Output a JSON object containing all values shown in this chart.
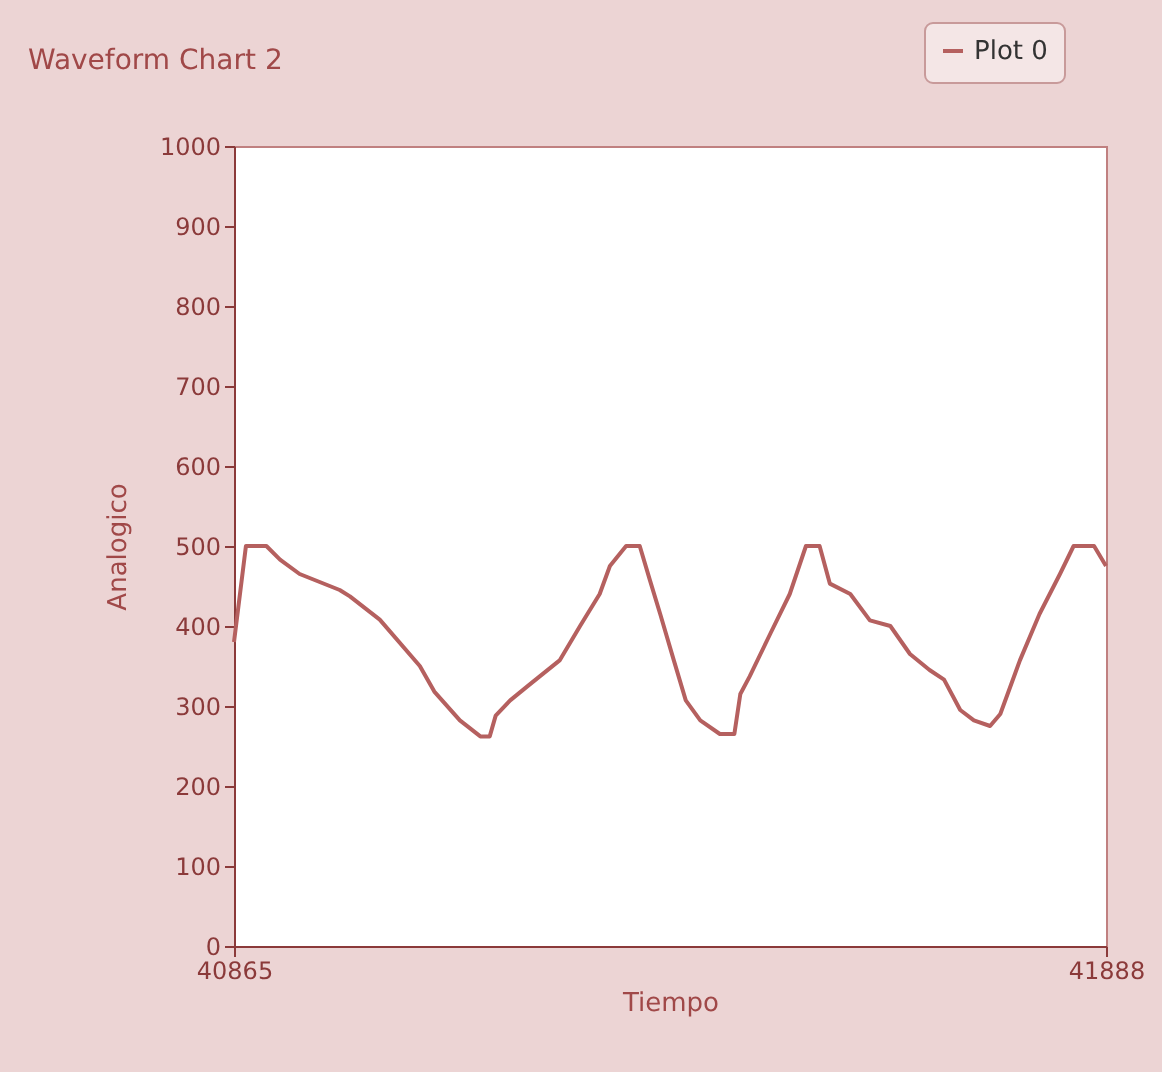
{
  "chart_data": {
    "type": "line",
    "title": "Waveform Chart 2",
    "xlabel": "Tiempo",
    "ylabel": "Analogico",
    "x": [
      40865,
      40879,
      40903,
      40919,
      40942,
      40989,
      41001,
      41036,
      41083,
      41100,
      41130,
      41154,
      41165,
      41172,
      41189,
      41212,
      41247,
      41271,
      41294,
      41306,
      41325,
      41341,
      41353,
      41365,
      41381,
      41395,
      41412,
      41435,
      41452,
      41459,
      41470,
      41494,
      41517,
      41536,
      41552,
      41564,
      41588,
      41611,
      41635,
      41658,
      41681,
      41698,
      41717,
      41733,
      41752,
      41764,
      41787,
      41810,
      41834,
      41850,
      41874,
      41888
    ],
    "series": [
      {
        "name": "Plot 0",
        "color": "#b5605f",
        "values": [
          380,
          500,
          500,
          483,
          465,
          445,
          437,
          408,
          350,
          318,
          282,
          262,
          262,
          288,
          307,
          327,
          357,
          400,
          440,
          475,
          500,
          500,
          457,
          415,
          357,
          307,
          282,
          265,
          265,
          315,
          337,
          390,
          440,
          500,
          500,
          453,
          440,
          407,
          400,
          365,
          345,
          333,
          295,
          282,
          275,
          290,
          357,
          415,
          465,
          500,
          500,
          475
        ]
      }
    ],
    "xlim": [
      40865,
      41888
    ],
    "xticks": [
      40865,
      41888
    ],
    "ylim": [
      0,
      1000
    ],
    "yticks": [
      0,
      100,
      200,
      300,
      400,
      500,
      600,
      700,
      800,
      900,
      1000
    ],
    "grid": false,
    "legend": "top right"
  }
}
